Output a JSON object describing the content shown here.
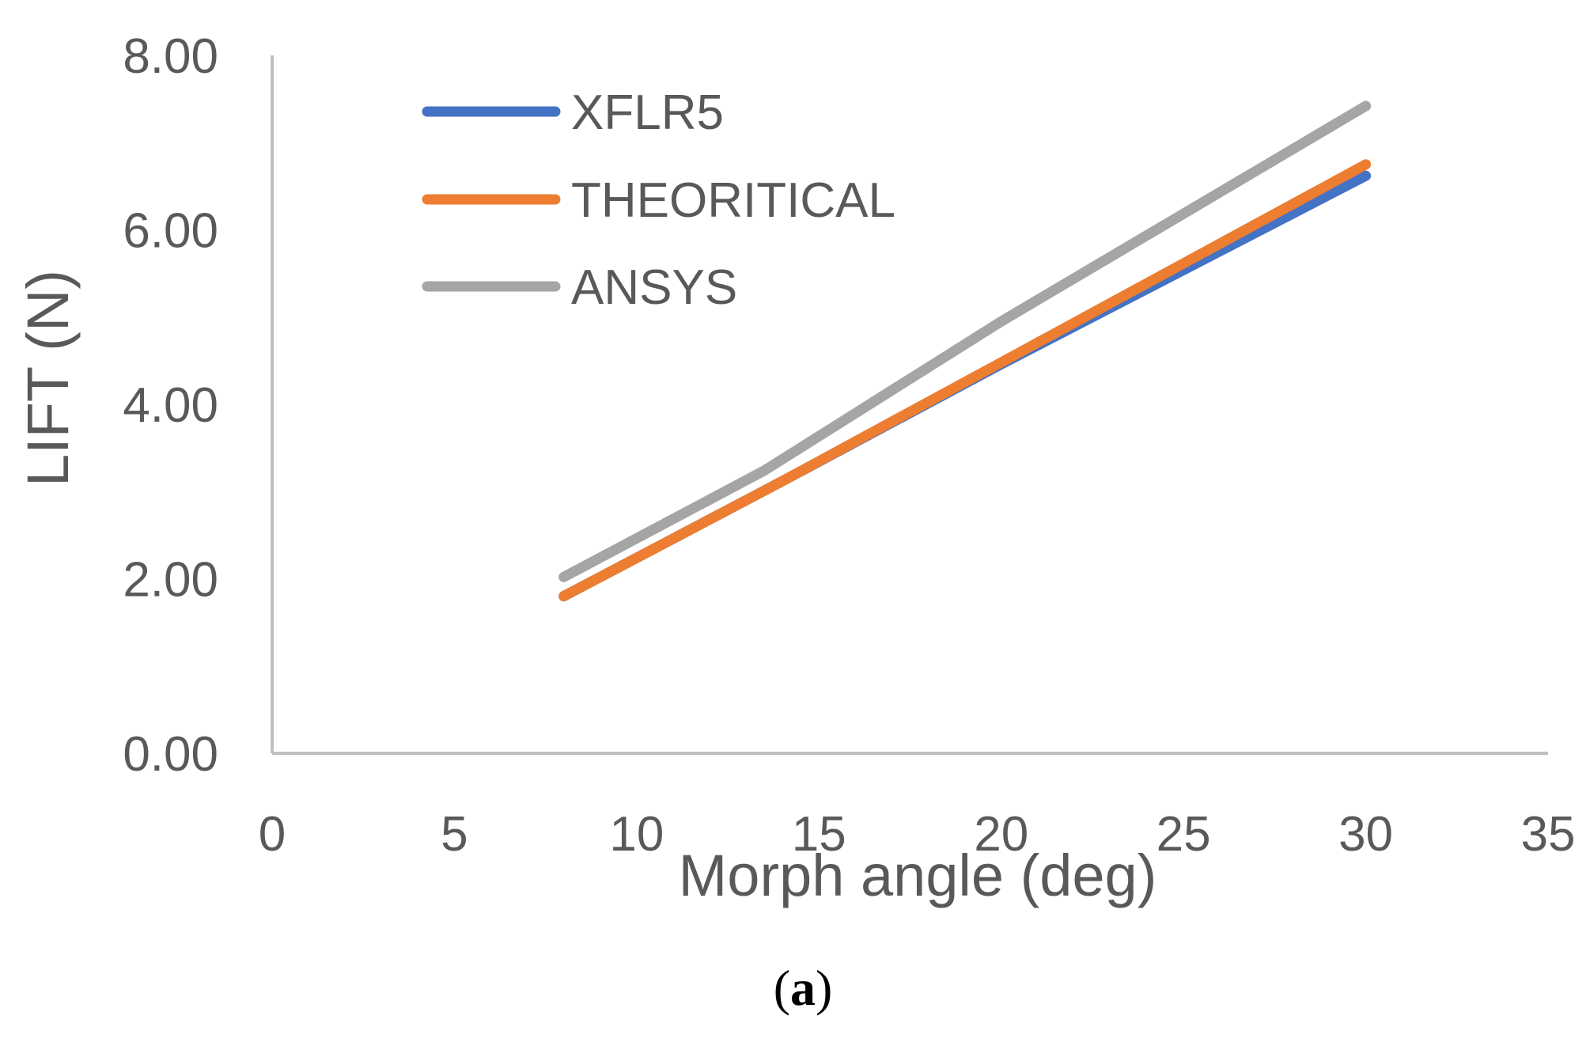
{
  "chart_data": {
    "type": "line",
    "title": "",
    "xlabel": "Morph angle (deg)",
    "ylabel": "LIFT (N)",
    "xlim": [
      0,
      35
    ],
    "ylim": [
      0,
      8
    ],
    "xticks": [
      "0",
      "5",
      "10",
      "15",
      "20",
      "25",
      "30",
      "35"
    ],
    "yticks": [
      "0.00",
      "2.00",
      "4.00",
      "6.00",
      "8.00"
    ],
    "grid": false,
    "legend_position": "top-left",
    "series": [
      {
        "name": "XFLR5",
        "color": "#4472C4",
        "x": [
          8,
          14,
          20,
          30
        ],
        "y": [
          1.8,
          3.12,
          4.46,
          6.62
        ]
      },
      {
        "name": "THEORITICAL",
        "color": "#ED7D31",
        "x": [
          8,
          14,
          20,
          30
        ],
        "y": [
          1.8,
          3.12,
          4.48,
          6.75
        ]
      },
      {
        "name": "ANSYS",
        "color": "#A5A5A5",
        "x": [
          8,
          13.5,
          20,
          30
        ],
        "y": [
          2.02,
          3.24,
          4.95,
          7.42
        ]
      }
    ]
  },
  "caption": {
    "open": "(",
    "letter": "a",
    "close": ")"
  }
}
